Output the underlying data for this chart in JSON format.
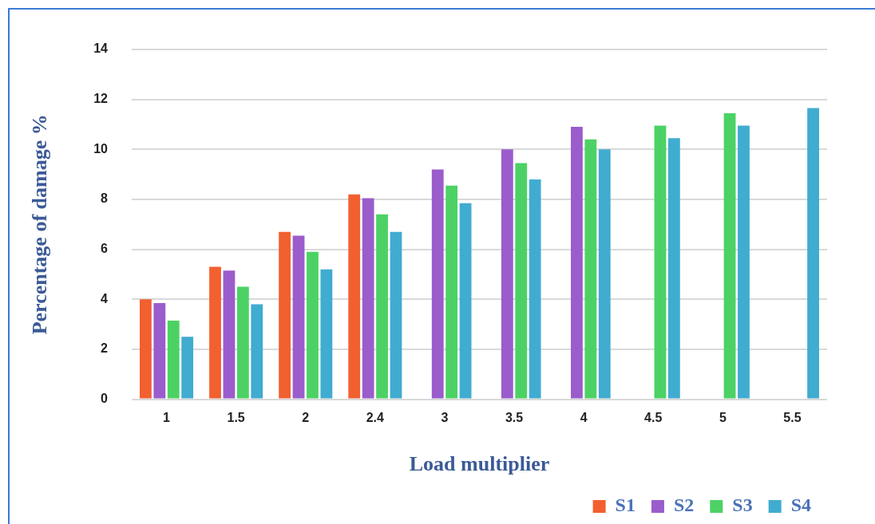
{
  "chart_data": {
    "type": "bar",
    "xlabel": "Load multiplier",
    "ylabel": "Percentage of damage %",
    "categories": [
      "1",
      "1.5",
      "2",
      "2.4",
      "3",
      "3.5",
      "4",
      "4.5",
      "5",
      "5.5"
    ],
    "series": [
      {
        "name": "S1",
        "color": "#f26030",
        "values": [
          4.0,
          5.3,
          6.7,
          8.2,
          null,
          null,
          null,
          null,
          null,
          null
        ]
      },
      {
        "name": "S2",
        "color": "#9b5ccc",
        "values": [
          3.85,
          5.15,
          6.55,
          8.05,
          9.2,
          10.0,
          10.9,
          null,
          null,
          null
        ]
      },
      {
        "name": "S3",
        "color": "#4cd264",
        "values": [
          3.15,
          4.5,
          5.9,
          7.4,
          8.55,
          9.45,
          10.4,
          10.95,
          11.45,
          null
        ]
      },
      {
        "name": "S4",
        "color": "#40acd0",
        "values": [
          2.5,
          3.8,
          5.2,
          6.7,
          7.85,
          8.8,
          10.0,
          10.45,
          10.95,
          11.65
        ]
      }
    ],
    "ylim": [
      0,
      14
    ],
    "yticks": [
      0,
      2,
      4,
      6,
      8,
      10,
      12,
      14
    ],
    "grid": "y",
    "legend": "bottom right"
  }
}
